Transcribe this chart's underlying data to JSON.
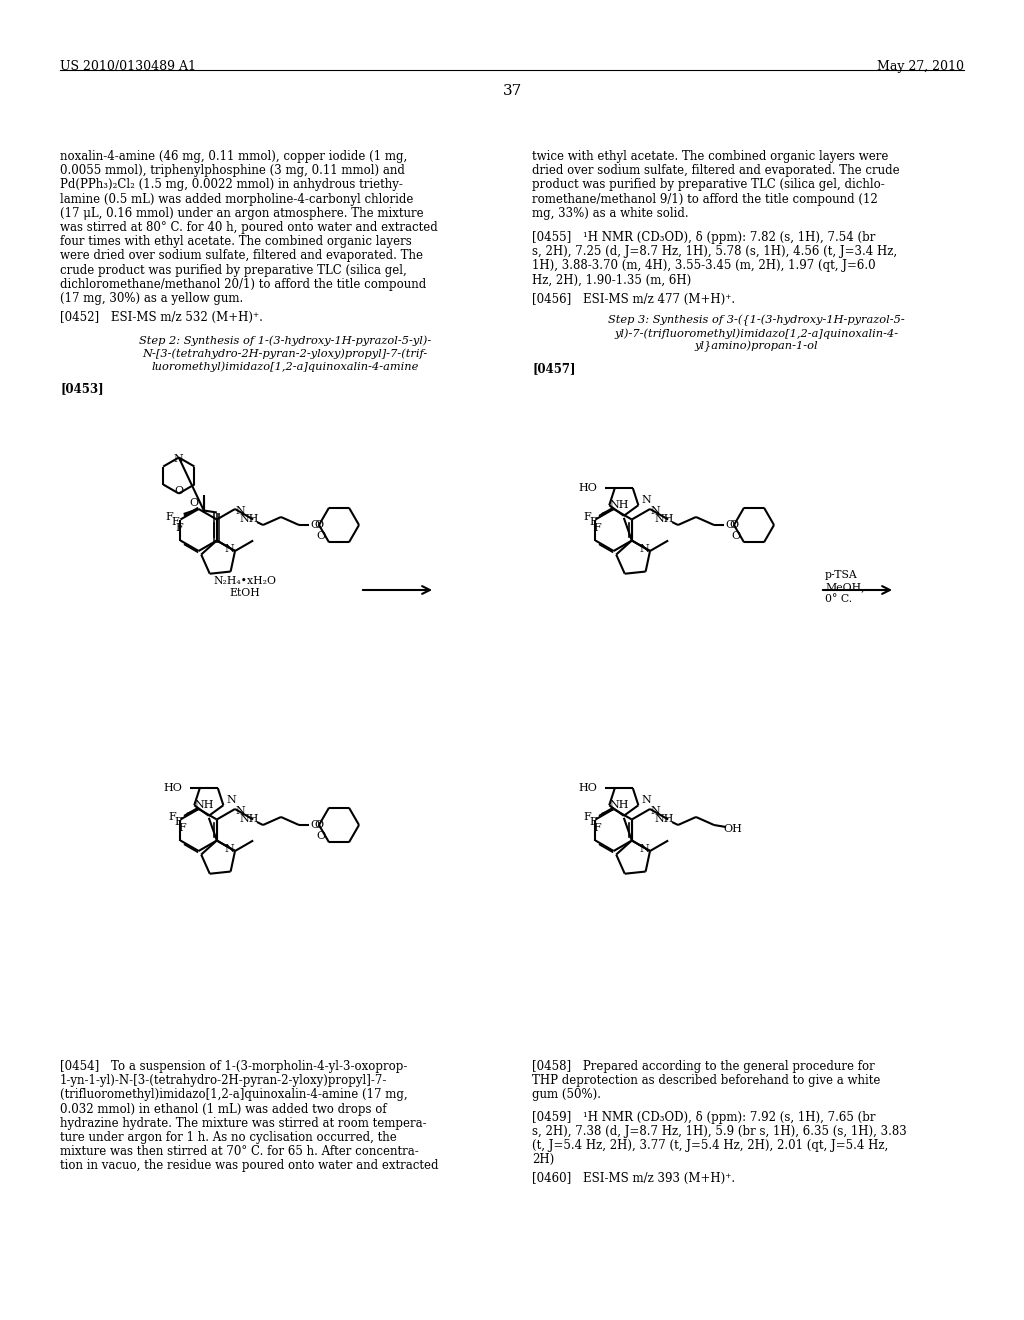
{
  "background_color": "#ffffff",
  "header_left": "US 2010/0130489 A1",
  "header_right": "May 27, 2010",
  "page_number": "37",
  "left_col_text": [
    "noxalin-4-amine (46 mg, 0.11 mmol), copper iodide (1 mg,",
    "0.0055 mmol), triphenylphosphine (3 mg, 0.11 mmol) and",
    "Pd(PPh₃)₂Cl₂ (1.5 mg, 0.0022 mmol) in anhydrous triethy-",
    "lamine (0.5 mL) was added morpholine-4-carbonyl chloride",
    "(17 μL, 0.16 mmol) under an argon atmosphere. The mixture",
    "was stirred at 80° C. for 40 h, poured onto water and extracted",
    "four times with ethyl acetate. The combined organic layers",
    "were dried over sodium sulfate, filtered and evaporated. The",
    "crude product was purified by preparative TLC (silica gel,",
    "dichloromethane/methanol 20/1) to afford the title compound",
    "(17 mg, 30%) as a yellow gum."
  ],
  "ref_0452": "[0452] ESI-MS m/z 532 (M+H)⁺.",
  "step2_lines": [
    "Step 2: Synthesis of 1-(3-hydroxy-1H-pyrazol-5-yl)-",
    "N-[3-(tetrahydro-2H-pyran-2-yloxy)propyl]-7-(trif-",
    "luoromethyl)imidazo[1,2-a]quinoxalin-4-amine"
  ],
  "ref_0453": "[0453]",
  "right_col_text": [
    "twice with ethyl acetate. The combined organic layers were",
    "dried over sodium sulfate, filtered and evaporated. The crude",
    "product was purified by preparative TLC (silica gel, dichlo-",
    "romethane/methanol 9/1) to afford the title compound (12",
    "mg, 33%) as a white solid."
  ],
  "ref_0455_lines": [
    "[0455] ¹H NMR (CD₃OD), δ (ppm): 7.82 (s, 1H), 7.54 (br",
    "s, 2H), 7.25 (d, J=8.7 Hz, 1H), 5.78 (s, 1H), 4.56 (t, J=3.4 Hz,",
    "1H), 3.88-3.70 (m, 4H), 3.55-3.45 (m, 2H), 1.97 (qt, J=6.0",
    "Hz, 2H), 1.90-1.35 (m, 6H)"
  ],
  "ref_0456": "[0456] ESI-MS m/z 477 (M+H)⁺.",
  "step3_lines": [
    "Step 3: Synthesis of 3-({1-(3-hydroxy-1H-pyrazol-5-",
    "yl)-7-(trifluoromethyl)imidazo[1,2-a]quinoxalin-4-",
    "yl}amino)propan-1-ol"
  ],
  "ref_0457": "[0457]",
  "ref_0454_lines": [
    "[0454] To a suspension of 1-(3-morpholin-4-yl-3-oxoprop-",
    "1-yn-1-yl)-N-[3-(tetrahydro-2H-pyran-2-yloxy)propyl]-7-",
    "(trifluoromethyl)imidazo[1,2-a]quinoxalin-4-amine (17 mg,",
    "0.032 mmol) in ethanol (1 mL) was added two drops of",
    "hydrazine hydrate. The mixture was stirred at room tempera-",
    "ture under argon for 1 h. As no cyclisation occurred, the",
    "mixture was then stirred at 70° C. for 65 h. After concentra-",
    "tion in vacuo, the residue was poured onto water and extracted"
  ],
  "ref_0458_lines": [
    "[0458] Prepared according to the general procedure for",
    "THP deprotection as described beforehand to give a white",
    "gum (50%)."
  ],
  "ref_0459_lines": [
    "[0459] ¹H NMR (CD₃OD), δ (ppm): 7.92 (s, 1H), 7.65 (br",
    "s, 2H), 7.38 (d, J=8.7 Hz, 1H), 5.9 (br s, 1H), 6.35 (s, 1H), 3.83",
    "(t, J=5.4 Hz, 2H), 3.77 (t, J=5.4 Hz, 2H), 2.01 (qt, J=5.4 Hz,",
    "2H)"
  ],
  "ref_0460": "[0460] ESI-MS m/z 393 (M+H)⁺.",
  "reagent_top1": "N₂H₄•xH₂O",
  "reagent_top2": "EtOH",
  "reagent_right1": "p-TSA",
  "reagent_right2": "MeOH,",
  "reagent_right3": "0° C."
}
